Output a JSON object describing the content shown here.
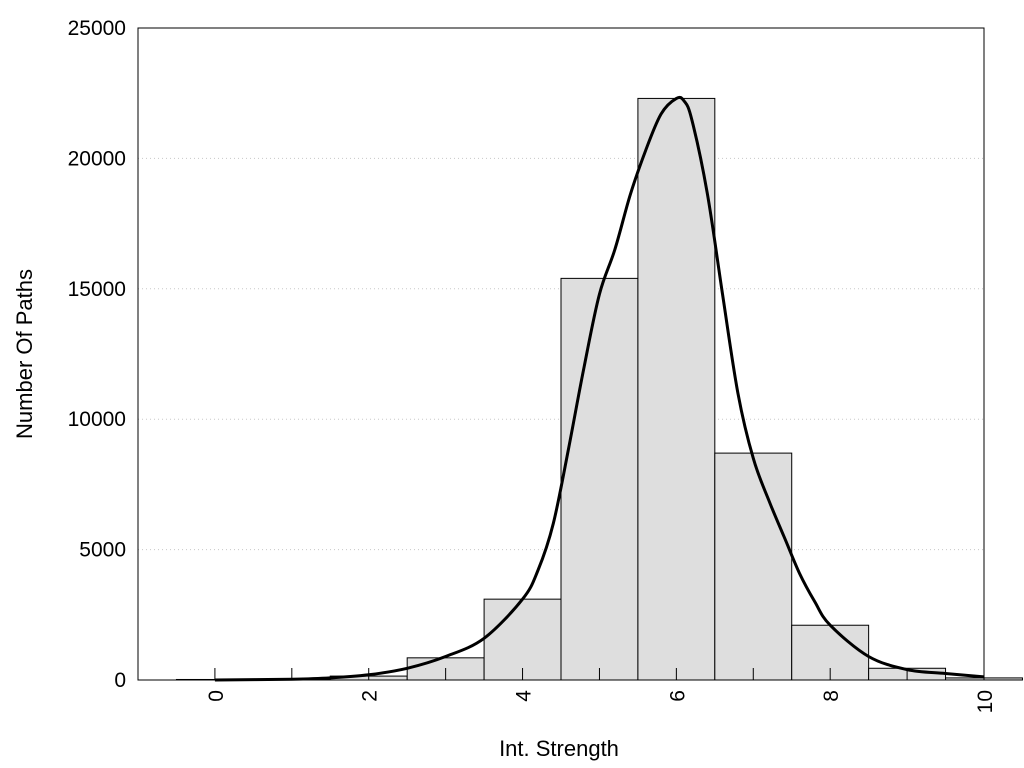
{
  "chart_data": {
    "type": "bar",
    "title": "",
    "xlabel": "Int. Strength",
    "ylabel": "Number Of Paths",
    "xlim": [
      -1,
      10
    ],
    "ylim": [
      0,
      25000
    ],
    "x_ticks": [
      "0",
      "2",
      "4",
      "6",
      "8",
      "10"
    ],
    "y_ticks": [
      "0",
      "5000",
      "10000",
      "15000",
      "20000",
      "25000"
    ],
    "grid": "horizontal dotted",
    "bin_width": 1,
    "bar_fill": "#dedede",
    "bar_stroke": "#000000",
    "curve_color": "#000000",
    "bins": [
      {
        "center": 0,
        "value": 20
      },
      {
        "center": 1,
        "value": 30
      },
      {
        "center": 2,
        "value": 150
      },
      {
        "center": 3,
        "value": 850
      },
      {
        "center": 4,
        "value": 3100
      },
      {
        "center": 5,
        "value": 15400
      },
      {
        "center": 6,
        "value": 22300
      },
      {
        "center": 7,
        "value": 8700
      },
      {
        "center": 8,
        "value": 2100
      },
      {
        "center": 9,
        "value": 450
      },
      {
        "center": 10,
        "value": 80
      }
    ],
    "density_curve": {
      "x": [
        0,
        1,
        1.5,
        2,
        2.5,
        3,
        3.5,
        4,
        4.2,
        4.4,
        4.6,
        4.8,
        5,
        5.2,
        5.4,
        5.6,
        5.8,
        6,
        6.1,
        6.2,
        6.4,
        6.6,
        6.8,
        7,
        7.2,
        7.4,
        7.6,
        7.8,
        8,
        8.5,
        9,
        9.5,
        10
      ],
      "y": [
        0,
        30,
        80,
        200,
        450,
        900,
        1600,
        3100,
        4200,
        6000,
        8900,
        12000,
        14800,
        16500,
        18600,
        20300,
        21700,
        22300,
        22200,
        21500,
        18700,
        14800,
        11000,
        8500,
        6900,
        5500,
        4100,
        3000,
        2100,
        900,
        400,
        250,
        120
      ]
    }
  }
}
